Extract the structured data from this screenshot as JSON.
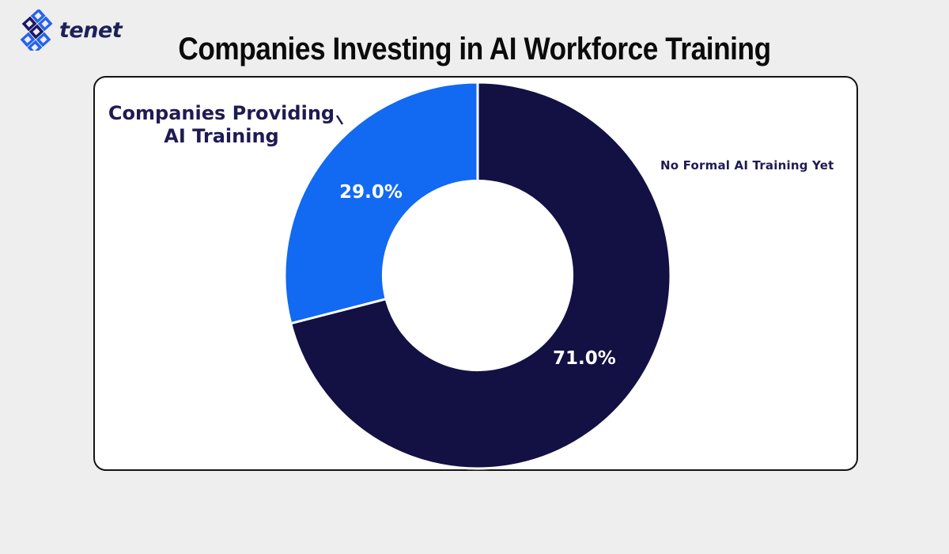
{
  "logo": {
    "brand": "tenet",
    "icon": "tenet-hash-icon",
    "text_color": "#1c2157",
    "icon_blue": "#2563eb",
    "icon_navy": "#1b1766"
  },
  "header": {
    "title": "Companies Investing in AI Workforce Training"
  },
  "chart_data": {
    "type": "pie",
    "subtype": "donut",
    "title": "Companies Investing in AI Workforce Training",
    "categories": [
      "No Formal AI Training Yet",
      "Companies Providing AI Training"
    ],
    "values": [
      71.0,
      29.0
    ],
    "value_labels": [
      "71.0%",
      "29.0%"
    ],
    "colors": [
      "#131044",
      "#1269f2"
    ],
    "start_angle_deg": 90,
    "direction": "clockwise",
    "inner_radius_ratio": 0.49,
    "wedge_edge_color": "#ffffff",
    "category_label_color": "#1e1b53",
    "pct_label_color": "#ffffff",
    "legend_position": "none",
    "grid": false
  }
}
